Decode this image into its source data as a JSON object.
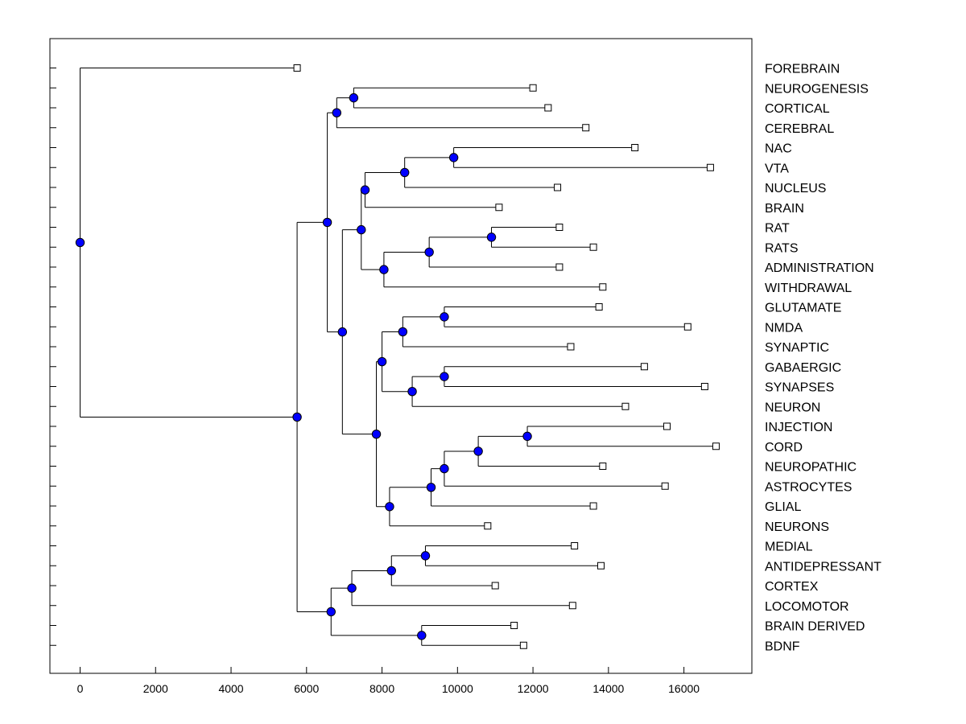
{
  "chart_data": {
    "type": "dendrogram",
    "title": "",
    "xlabel": "",
    "ylabel": "",
    "xlim": [
      -800,
      17800
    ],
    "x_ticks": [
      0,
      2000,
      4000,
      6000,
      8000,
      10000,
      12000,
      14000,
      16000
    ],
    "x_tick_labels": [
      "0",
      "2000",
      "4000",
      "6000",
      "8000",
      "10000",
      "12000",
      "14000",
      "16000"
    ],
    "grid": false,
    "leaves": [
      {
        "name": "FOREBRAIN",
        "value": 5750
      },
      {
        "name": "NEUROGENESIS",
        "value": 12000
      },
      {
        "name": "CORTICAL",
        "value": 12400
      },
      {
        "name": "CEREBRAL",
        "value": 13400
      },
      {
        "name": "NAC",
        "value": 14700
      },
      {
        "name": "VTA",
        "value": 16700
      },
      {
        "name": "NUCLEUS",
        "value": 12650
      },
      {
        "name": "BRAIN",
        "value": 11100
      },
      {
        "name": "RAT",
        "value": 12700
      },
      {
        "name": "RATS",
        "value": 13600
      },
      {
        "name": "ADMINISTRATION",
        "value": 12700
      },
      {
        "name": "WITHDRAWAL",
        "value": 13850
      },
      {
        "name": "GLUTAMATE",
        "value": 13750
      },
      {
        "name": "NMDA",
        "value": 16100
      },
      {
        "name": "SYNAPTIC",
        "value": 13000
      },
      {
        "name": "GABAERGIC",
        "value": 14950
      },
      {
        "name": "SYNAPSES",
        "value": 16550
      },
      {
        "name": "NEURON",
        "value": 14450
      },
      {
        "name": "INJECTION",
        "value": 15550
      },
      {
        "name": "CORD",
        "value": 16850
      },
      {
        "name": "NEUROPATHIC",
        "value": 13850
      },
      {
        "name": "ASTROCYTES",
        "value": 15500
      },
      {
        "name": "GLIAL",
        "value": 13600
      },
      {
        "name": "NEURONS",
        "value": 10800
      },
      {
        "name": "MEDIAL",
        "value": 13100
      },
      {
        "name": "ANTIDEPRESSANT",
        "value": 13800
      },
      {
        "name": "CORTEX",
        "value": 11000
      },
      {
        "name": "LOCOMOTOR",
        "value": 13050
      },
      {
        "name": "BRAIN DERIVED",
        "value": 11500
      },
      {
        "name": "BDNF",
        "value": 11750
      }
    ],
    "merges": [
      {
        "id": "n1",
        "value": 7250,
        "children": [
          "L1",
          "L2"
        ]
      },
      {
        "id": "n2",
        "value": 6800,
        "children": [
          "n1",
          "L3"
        ]
      },
      {
        "id": "n3",
        "value": 9900,
        "children": [
          "L4",
          "L5"
        ]
      },
      {
        "id": "n4",
        "value": 8600,
        "children": [
          "n3",
          "L6"
        ]
      },
      {
        "id": "n5",
        "value": 7550,
        "children": [
          "n4",
          "L7"
        ]
      },
      {
        "id": "n6",
        "value": 10900,
        "children": [
          "L8",
          "L9"
        ]
      },
      {
        "id": "n7",
        "value": 9250,
        "children": [
          "n6",
          "L10"
        ]
      },
      {
        "id": "n8",
        "value": 8050,
        "children": [
          "n7",
          "L11"
        ]
      },
      {
        "id": "n9",
        "value": 7450,
        "children": [
          "n5",
          "n8"
        ]
      },
      {
        "id": "n10",
        "value": 9650,
        "children": [
          "L12",
          "L13"
        ]
      },
      {
        "id": "n11",
        "value": 8550,
        "children": [
          "n10",
          "L14"
        ]
      },
      {
        "id": "n12",
        "value": 9650,
        "children": [
          "L15",
          "L16"
        ]
      },
      {
        "id": "n13",
        "value": 8800,
        "children": [
          "n12",
          "L17"
        ]
      },
      {
        "id": "n14",
        "value": 8000,
        "children": [
          "n11",
          "n13"
        ]
      },
      {
        "id": "n15",
        "value": 11850,
        "children": [
          "L18",
          "L19"
        ]
      },
      {
        "id": "n16",
        "value": 10550,
        "children": [
          "n15",
          "L20"
        ]
      },
      {
        "id": "n17",
        "value": 9650,
        "children": [
          "n16",
          "L21"
        ]
      },
      {
        "id": "n18",
        "value": 9300,
        "children": [
          "n17",
          "L22"
        ]
      },
      {
        "id": "n19",
        "value": 8200,
        "children": [
          "n18",
          "L23"
        ]
      },
      {
        "id": "n20",
        "value": 7850,
        "children": [
          "n14",
          "n19"
        ]
      },
      {
        "id": "n21",
        "value": 6950,
        "children": [
          "n9",
          "n20"
        ]
      },
      {
        "id": "n22",
        "value": 6550,
        "children": [
          "n2",
          "n21"
        ]
      },
      {
        "id": "n23",
        "value": 9150,
        "children": [
          "L24",
          "L25"
        ]
      },
      {
        "id": "n24",
        "value": 8250,
        "children": [
          "n23",
          "L26"
        ]
      },
      {
        "id": "n25",
        "value": 7200,
        "children": [
          "n24",
          "L27"
        ]
      },
      {
        "id": "n26",
        "value": 9050,
        "children": [
          "L28",
          "L29"
        ]
      },
      {
        "id": "n27",
        "value": 6650,
        "children": [
          "n25",
          "n26"
        ]
      },
      {
        "id": "n28",
        "value": 5750,
        "children": [
          "n22",
          "n27"
        ]
      },
      {
        "id": "root",
        "value": 0,
        "children": [
          "L0",
          "n28"
        ]
      }
    ],
    "colors": {
      "node_fill": "#0000ff",
      "leaf_fill": "#ffffff",
      "line": "#000000"
    }
  }
}
